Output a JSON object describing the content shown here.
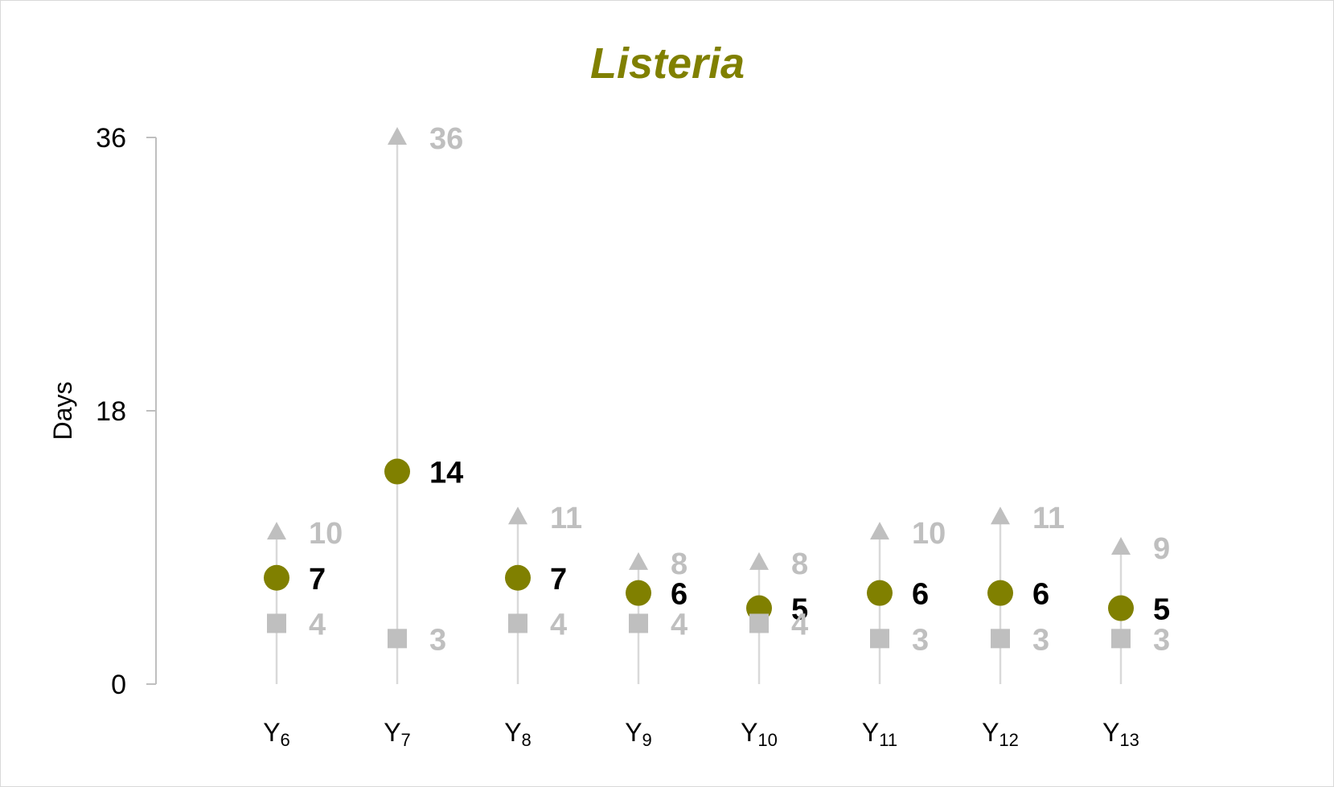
{
  "chart_data": {
    "type": "scatter",
    "title": "Listeria",
    "ylabel": "Days",
    "xlabel": "",
    "ylim": [
      0,
      36
    ],
    "yticks": [
      0,
      18,
      36
    ],
    "categories": [
      {
        "base": "Y",
        "sub": "6"
      },
      {
        "base": "Y",
        "sub": "7"
      },
      {
        "base": "Y",
        "sub": "8"
      },
      {
        "base": "Y",
        "sub": "9"
      },
      {
        "base": "Y",
        "sub": "10"
      },
      {
        "base": "Y",
        "sub": "11"
      },
      {
        "base": "Y",
        "sub": "12"
      },
      {
        "base": "Y",
        "sub": "13"
      }
    ],
    "series": [
      {
        "marker": "triangle",
        "color": "#bfbfbf",
        "label_color": "#bfbfbf",
        "values": [
          10,
          36,
          11,
          8,
          8,
          10,
          11,
          9
        ]
      },
      {
        "marker": "circle",
        "color": "#808000",
        "label_color": "#000000",
        "values": [
          7,
          14,
          7,
          6,
          5,
          6,
          6,
          5
        ]
      },
      {
        "marker": "square",
        "color": "#bfbfbf",
        "label_color": "#bfbfbf",
        "values": [
          4,
          3,
          4,
          4,
          4,
          3,
          3,
          3
        ]
      }
    ],
    "grid": false,
    "colors": {
      "title": "#808000",
      "axis": "#bfbfbf",
      "dropline": "#d9d9d9"
    }
  }
}
